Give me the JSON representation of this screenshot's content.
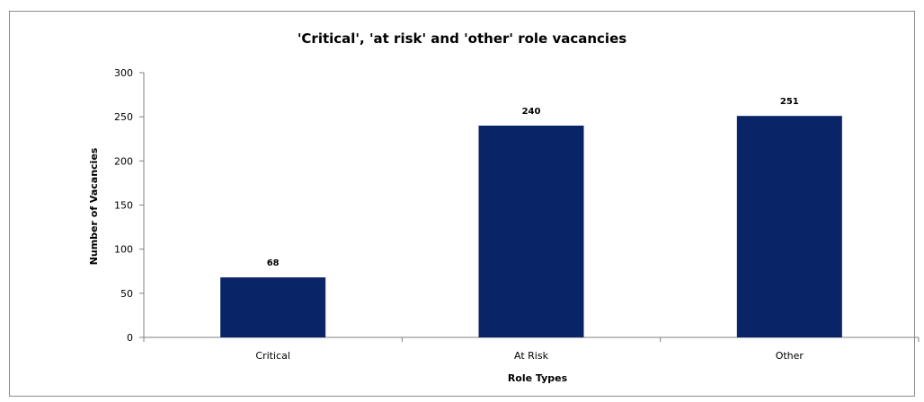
{
  "chart_data": {
    "type": "bar",
    "title": "'Critical', 'at risk' and 'other' role vacancies",
    "xlabel": "Role Types",
    "ylabel": "Number of Vacancies",
    "categories": [
      "Critical",
      "At Risk",
      "Other"
    ],
    "values": [
      68,
      240,
      251
    ],
    "data_labels": [
      "68",
      "240",
      "251"
    ],
    "ylim": [
      0,
      300
    ],
    "yticks": [
      0,
      50,
      100,
      150,
      200,
      250,
      300
    ],
    "ytick_labels": [
      "0",
      "50",
      "100",
      "150",
      "200",
      "250",
      "300"
    ],
    "grid": false,
    "legend": "none",
    "bar_color": "#0a2468"
  }
}
